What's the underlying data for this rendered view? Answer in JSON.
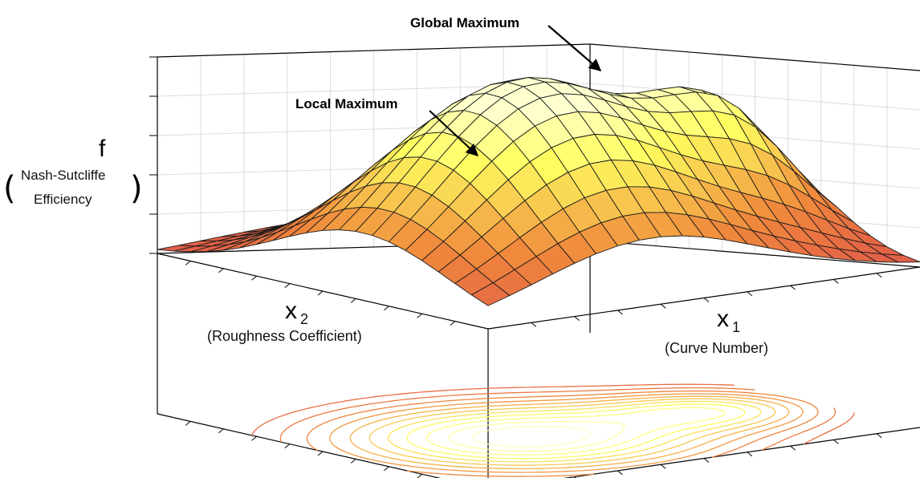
{
  "chart_data": {
    "type": "surface",
    "z_label": "f",
    "z_label_detail": [
      "Nash-Sutcliffe",
      "Efficiency"
    ],
    "x1_label": "x",
    "x1_subscript": "1",
    "x1_detail": "(Curve Number)",
    "x2_label": "x",
    "x2_subscript": "2",
    "x2_detail": "(Roughness Coefficient)",
    "annotations": [
      {
        "text": "Global Maximum"
      },
      {
        "text": "Local Maximum"
      }
    ],
    "peaks": [
      {
        "name": "global",
        "x1": 0.62,
        "x2": 0.38,
        "height": 1.0,
        "spread": 0.26
      },
      {
        "name": "local",
        "x1": 0.18,
        "x2": 0.38,
        "height": 0.55,
        "spread": 0.14
      }
    ],
    "grid_lines": 20,
    "contour_levels": [
      0.15,
      0.22,
      0.3,
      0.38,
      0.46,
      0.54,
      0.62,
      0.7,
      0.78,
      0.86,
      0.93
    ],
    "grid": true,
    "projected_contours": true,
    "colormap": {
      "low": "#e0584a",
      "mid": "#f08a3c",
      "high": "#ffff60",
      "top": "#ffffd0"
    },
    "mesh_color": "#1a1a1a",
    "axes_color": "#000000"
  }
}
